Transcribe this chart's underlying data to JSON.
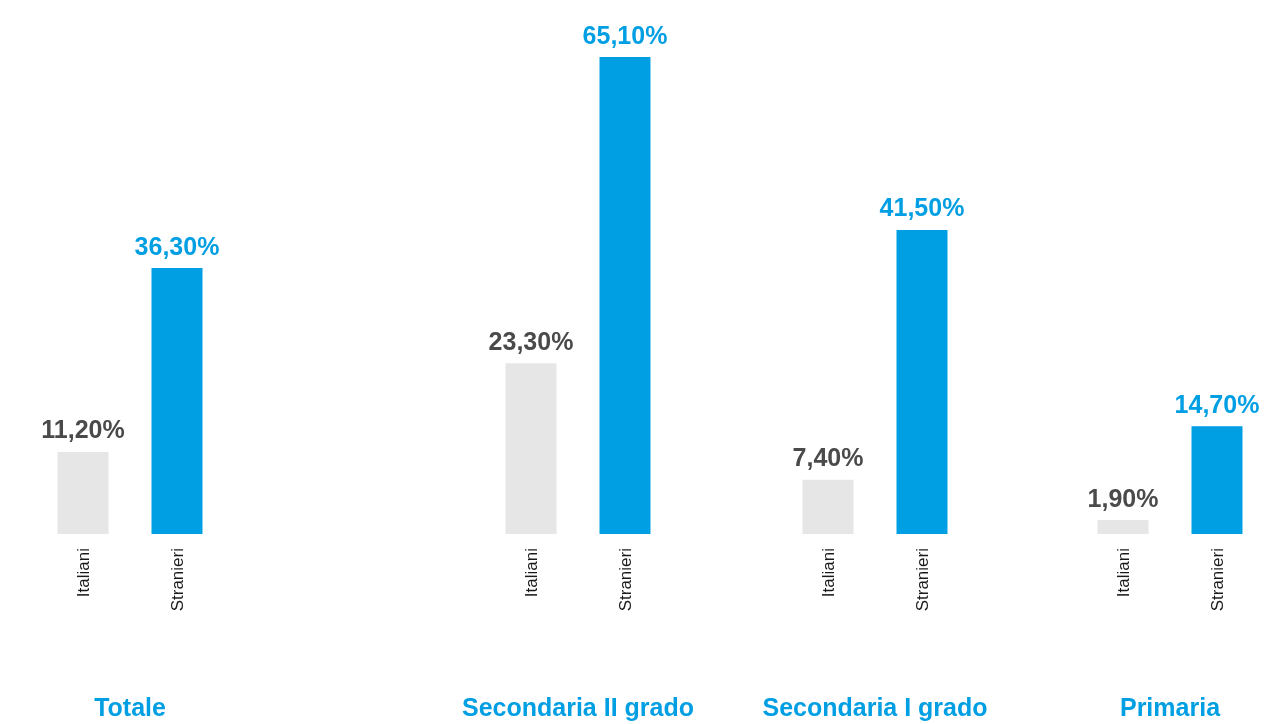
{
  "chart_data": [
    {
      "type": "bar",
      "xlabel": "Totale",
      "categories": [
        "Italiani",
        "Stranieri"
      ],
      "values": [
        11.2,
        36.3
      ],
      "colors": [
        "#e6e6e6",
        "#009fe3"
      ],
      "value_labels": [
        "11,20%",
        "36,30%"
      ],
      "tick_labels": "x"
    },
    {
      "type": "bar",
      "xlabel": "Secondaria II grado",
      "categories": [
        "Italiani",
        "Stranieri"
      ],
      "values": [
        23.3,
        65.1
      ],
      "colors": [
        "#e6e6e6",
        "#009fe3"
      ],
      "value_labels": [
        "23,30%",
        "65,10%"
      ],
      "tick_labels": "x"
    },
    {
      "type": "bar",
      "xlabel": "Secondaria I grado",
      "categories": [
        "Italiani",
        "Stranieri"
      ],
      "values": [
        7.4,
        41.5
      ],
      "colors": [
        "#e6e6e6",
        "#009fe3"
      ],
      "value_labels": [
        "7,40%",
        "41,50%"
      ],
      "tick_labels": "x"
    },
    {
      "type": "bar",
      "xlabel": "Primaria",
      "categories": [
        "Italiani",
        "Stranieri"
      ],
      "values": [
        1.9,
        14.7
      ],
      "colors": [
        "#e6e6e6",
        "#009fe3"
      ],
      "value_labels": [
        "1,90%",
        "14,70%"
      ],
      "tick_labels": "x"
    }
  ]
}
